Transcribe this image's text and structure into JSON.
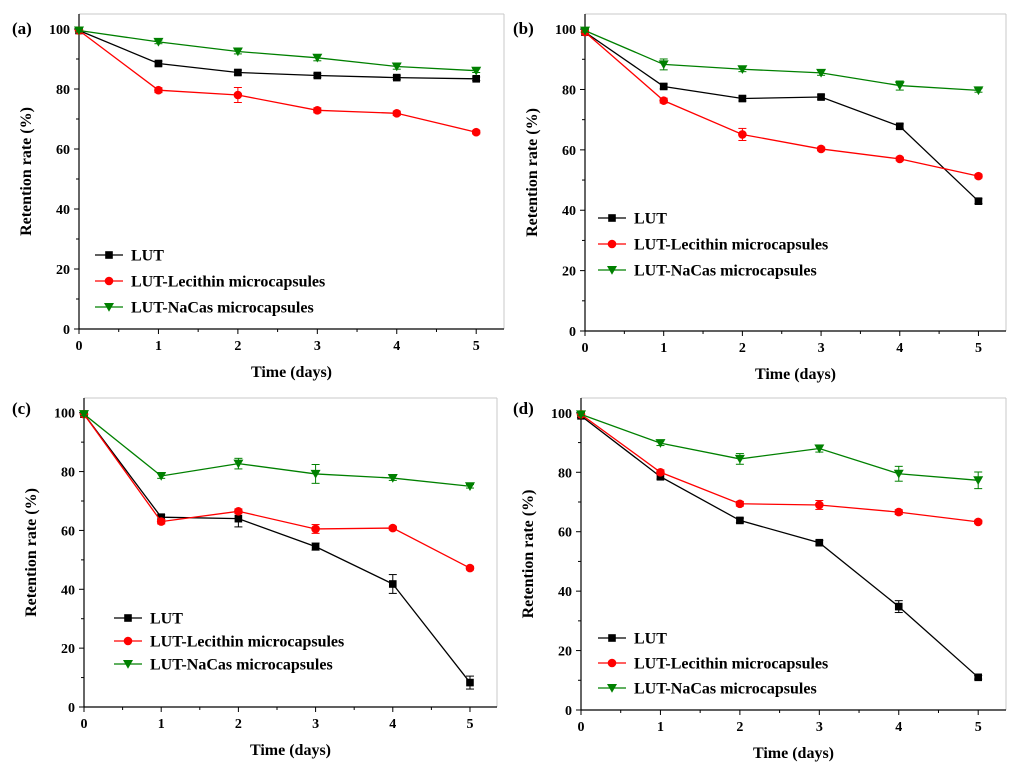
{
  "chart_data": [
    {
      "type": "line",
      "panel_label": "(a)",
      "xlabel": "Time (days)",
      "ylabel": "Retention rate (%)",
      "xlim": [
        0,
        5.35
      ],
      "ylim": [
        0,
        105
      ],
      "xticks": [
        0,
        1,
        2,
        3,
        4,
        5
      ],
      "yticks": [
        0,
        20,
        40,
        60,
        80,
        100
      ],
      "legend_position": "bottom-left",
      "x": [
        0,
        1,
        2,
        3,
        4,
        5
      ],
      "series": [
        {
          "name": "LUT",
          "marker": "square",
          "color": "#000000",
          "values": [
            99.5,
            88.5,
            85.5,
            84.5,
            83.8,
            83.4
          ],
          "errors": [
            0.5,
            0.8,
            0.8,
            0.6,
            0.6,
            0.6
          ]
        },
        {
          "name": "LUT-Lecithin microcapsules",
          "marker": "circle",
          "color": "#ff0000",
          "values": [
            99.5,
            79.6,
            78.0,
            72.9,
            71.9,
            65.6
          ],
          "errors": [
            0.5,
            0.8,
            2.5,
            0.8,
            0.7,
            0.6
          ]
        },
        {
          "name": "LUT-NaCas microcapsules",
          "marker": "triangle-down",
          "color": "#008000",
          "values": [
            99.5,
            95.7,
            92.5,
            90.4,
            87.5,
            86.1
          ],
          "errors": [
            0.5,
            0.6,
            0.8,
            1.0,
            0.9,
            0.6
          ]
        }
      ]
    },
    {
      "type": "line",
      "panel_label": "(b)",
      "xlabel": "Time (days)",
      "ylabel": "Retention rate (%)",
      "xlim": [
        0,
        5.35
      ],
      "ylim": [
        0,
        105
      ],
      "xticks": [
        0,
        1,
        2,
        3,
        4,
        5
      ],
      "yticks": [
        0,
        20,
        40,
        60,
        80,
        100
      ],
      "legend_position": "middle-left",
      "x": [
        0,
        1,
        2,
        3,
        4,
        5
      ],
      "series": [
        {
          "name": "LUT",
          "marker": "square",
          "color": "#000000",
          "values": [
            99.0,
            81.0,
            77.0,
            77.5,
            67.8,
            43.0
          ],
          "errors": [
            0.5,
            0.8,
            0.8,
            0.7,
            0.8,
            0.8
          ]
        },
        {
          "name": "LUT-Lecithin microcapsules",
          "marker": "circle",
          "color": "#ff0000",
          "values": [
            99.0,
            76.3,
            65.1,
            60.3,
            57.0,
            51.3
          ],
          "errors": [
            0.5,
            0.8,
            2.0,
            0.6,
            0.6,
            0.6
          ]
        },
        {
          "name": "LUT-NaCas microcapsules",
          "marker": "triangle-down",
          "color": "#008000",
          "values": [
            99.5,
            88.3,
            86.7,
            85.5,
            81.3,
            79.7
          ],
          "errors": [
            0.5,
            1.8,
            0.8,
            0.8,
            1.5,
            0.6
          ]
        }
      ]
    },
    {
      "type": "line",
      "panel_label": "(c)",
      "xlabel": "Time (days)",
      "ylabel": "Retention rate (%)",
      "xlim": [
        0,
        5.35
      ],
      "ylim": [
        0,
        105
      ],
      "xticks": [
        0,
        1,
        2,
        3,
        4,
        5
      ],
      "yticks": [
        0,
        20,
        40,
        60,
        80,
        100
      ],
      "legend_position": "bottom-left",
      "x": [
        0,
        1,
        2,
        3,
        4,
        5
      ],
      "series": [
        {
          "name": "LUT",
          "marker": "square",
          "color": "#000000",
          "values": [
            99.5,
            64.5,
            64.0,
            54.5,
            41.8,
            8.3
          ],
          "errors": [
            0.5,
            0.8,
            2.8,
            1.2,
            3.2,
            2.2
          ]
        },
        {
          "name": "LUT-Lecithin microcapsules",
          "marker": "circle",
          "color": "#ff0000",
          "values": [
            99.5,
            63.0,
            66.5,
            60.5,
            60.8,
            47.2
          ],
          "errors": [
            0.5,
            0.8,
            0.8,
            1.5,
            0.6,
            0.6
          ]
        },
        {
          "name": "LUT-NaCas microcapsules",
          "marker": "triangle-down",
          "color": "#008000",
          "values": [
            99.5,
            78.5,
            82.7,
            79.2,
            77.8,
            75.0
          ],
          "errors": [
            0.5,
            0.8,
            1.8,
            3.2,
            0.8,
            0.6
          ]
        }
      ]
    },
    {
      "type": "line",
      "panel_label": "(d)",
      "xlabel": "Time (days)",
      "ylabel": "Retention rate (%)",
      "xlim": [
        0,
        5.35
      ],
      "ylim": [
        0,
        105
      ],
      "xticks": [
        0,
        1,
        2,
        3,
        4,
        5
      ],
      "yticks": [
        0,
        20,
        40,
        60,
        80,
        100
      ],
      "legend_position": "bottom-left",
      "x": [
        0,
        1,
        2,
        3,
        4,
        5
      ],
      "series": [
        {
          "name": "LUT",
          "marker": "square",
          "color": "#000000",
          "values": [
            99.0,
            78.5,
            63.8,
            56.3,
            34.8,
            11.0
          ],
          "errors": [
            0.5,
            0.8,
            0.8,
            0.8,
            2.0,
            0.6
          ]
        },
        {
          "name": "LUT-Lecithin microcapsules",
          "marker": "circle",
          "color": "#ff0000",
          "values": [
            99.5,
            80.0,
            69.4,
            69.0,
            66.6,
            63.3
          ],
          "errors": [
            0.5,
            0.8,
            0.8,
            1.5,
            0.8,
            0.6
          ]
        },
        {
          "name": "LUT-NaCas microcapsules",
          "marker": "triangle-down",
          "color": "#008000",
          "values": [
            99.5,
            89.8,
            84.5,
            88.0,
            79.5,
            77.3
          ],
          "errors": [
            0.5,
            0.8,
            1.8,
            1.2,
            2.5,
            2.8
          ]
        }
      ]
    }
  ]
}
